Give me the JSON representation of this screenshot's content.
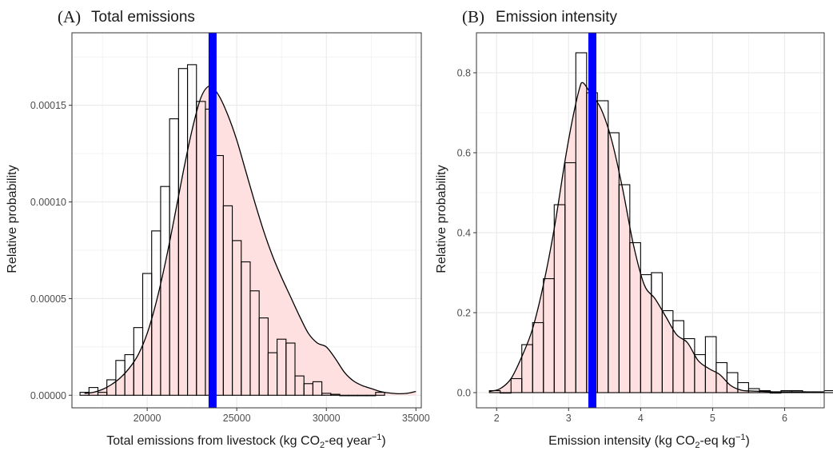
{
  "chart_data": [
    {
      "type": "bar",
      "panel_letter": "(A)",
      "title": "Total emissions",
      "xlabel": {
        "pre": "Total emissions from livestock (kg CO",
        "sub": "2",
        "mid": "-eq year",
        "sup": "−1",
        "post": ")"
      },
      "ylabel": "Relative probability",
      "xlim": [
        15800,
        35300
      ],
      "ylim": [
        -6.5e-06,
        0.0001875
      ],
      "xticks": [
        20000,
        25000,
        30000,
        35000
      ],
      "xtick_labels": [
        "20000",
        "25000",
        "30000",
        "35000"
      ],
      "yticks": [
        0,
        5e-05,
        0.0001,
        0.00015
      ],
      "ytick_labels": [
        "0.00000",
        "0.00005",
        "0.00010",
        "0.00015"
      ],
      "grid": true,
      "bin_width": 500,
      "bin_start": 16250,
      "bin_values": [
        1.5e-06,
        4e-06,
        1.5e-06,
        8e-06,
        1.8e-05,
        2.1e-05,
        3.5e-05,
        6.3e-05,
        8.5e-05,
        0.000108,
        0.000143,
        0.000169,
        0.000171,
        0.000152,
        0.000148,
        0.000124,
        9.8e-05,
        8e-05,
        6.9e-05,
        5.4e-05,
        4e-05,
        2.2e-05,
        2.9e-05,
        2.7e-05,
        1e-05,
        6e-06,
        7e-06,
        1e-06,
        5e-07,
        0,
        0,
        0,
        0,
        1.5e-06
      ],
      "density": {
        "x": [
          16500,
          17000,
          17500,
          18000,
          18500,
          19000,
          19500,
          20000,
          20500,
          21000,
          21500,
          22000,
          22500,
          23000,
          23500,
          24000,
          24500,
          25000,
          25500,
          26000,
          26500,
          27000,
          27500,
          28000,
          28500,
          29000,
          29500,
          30000,
          30500,
          31000,
          31500,
          32000,
          32500,
          33000,
          33500,
          34000,
          34500,
          35000
        ],
        "y": [
          1e-06,
          1.5e-06,
          3e-06,
          5.5e-06,
          9e-06,
          1.4e-05,
          2.1e-05,
          3.2e-05,
          4.8e-05,
          6.8e-05,
          9.1e-05,
          0.000115,
          0.000137,
          0.000154,
          0.00016,
          0.000155,
          0.000145,
          0.000132,
          0.000116,
          0.0001,
          8.5e-05,
          7.2e-05,
          6.1e-05,
          5.1e-05,
          4.1e-05,
          3.2e-05,
          2.7e-05,
          2.5e-05,
          1.9e-05,
          1.2e-05,
          7.5e-06,
          5e-06,
          3.5e-06,
          2e-06,
          1.2e-06,
          8e-07,
          1e-06,
          2e-06
        ]
      },
      "vline": 23650,
      "colors": {
        "fill": "#ffe0e0",
        "bar_stroke": "#000000",
        "density": "#000000",
        "vline": "#0000ff",
        "grid": "#ebebeb",
        "border": "#333333"
      }
    },
    {
      "type": "bar",
      "panel_letter": "(B)",
      "title": "Emission intensity",
      "xlabel": {
        "pre": "Emission intensity (kg CO",
        "sub": "2",
        "mid": "-eq kg",
        "sup": "−1",
        "post": ")"
      },
      "ylabel": "Relative probability",
      "xlim": [
        1.72,
        6.55
      ],
      "ylim": [
        -0.038,
        0.9
      ],
      "xticks": [
        2,
        3,
        4,
        5,
        6
      ],
      "xtick_labels": [
        "2",
        "3",
        "4",
        "5",
        "6"
      ],
      "yticks": [
        0,
        0.2,
        0.4,
        0.6,
        0.8
      ],
      "ytick_labels": [
        "0.0",
        "0.2",
        "0.4",
        "0.6",
        "0.8"
      ],
      "grid": true,
      "bin_width": 0.15,
      "bin_start": 1.9,
      "bin_values": [
        0.005,
        0,
        0.035,
        0.12,
        0.175,
        0.285,
        0.47,
        0.575,
        0.85,
        0.75,
        0.73,
        0.65,
        0.52,
        0.375,
        0.295,
        0.3,
        0.205,
        0.18,
        0.135,
        0.095,
        0.14,
        0.075,
        0.05,
        0.025,
        0.01,
        0.005,
        0,
        0.005,
        0.005,
        0.002,
        0.002,
        0.005
      ],
      "density": {
        "x": [
          1.9,
          2.05,
          2.2,
          2.35,
          2.5,
          2.65,
          2.8,
          2.95,
          3.05,
          3.15,
          3.2,
          3.3,
          3.45,
          3.6,
          3.75,
          3.9,
          4.05,
          4.2,
          4.35,
          4.5,
          4.65,
          4.8,
          4.95,
          5.1,
          5.25,
          5.4,
          5.55,
          5.7,
          5.85,
          6.0,
          6.15,
          6.3
        ],
        "y": [
          0.003,
          0.01,
          0.035,
          0.09,
          0.16,
          0.27,
          0.41,
          0.58,
          0.68,
          0.76,
          0.775,
          0.75,
          0.71,
          0.63,
          0.51,
          0.37,
          0.27,
          0.235,
          0.19,
          0.145,
          0.125,
          0.08,
          0.06,
          0.045,
          0.018,
          0.006,
          0.004,
          0.003,
          0.002,
          0.002,
          0.002,
          0.002
        ]
      },
      "vline": 3.33,
      "colors": {
        "fill": "#ffe0e0",
        "bar_stroke": "#000000",
        "density": "#000000",
        "vline": "#0000ff",
        "grid": "#ebebeb",
        "border": "#333333"
      }
    }
  ]
}
